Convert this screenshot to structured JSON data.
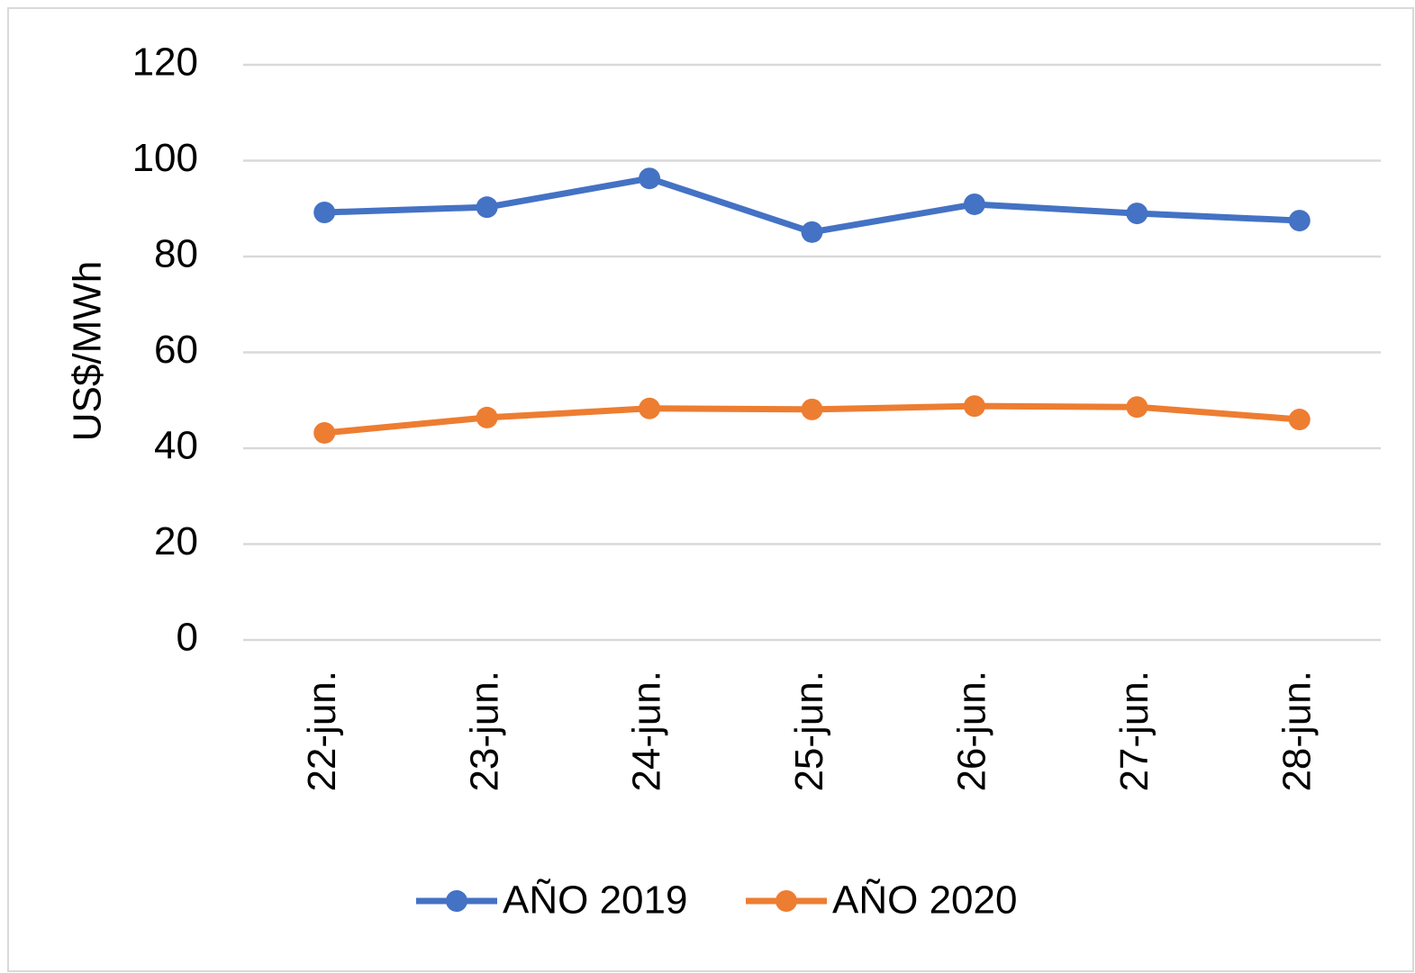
{
  "chart_data": {
    "type": "line",
    "y_label": "US$/MWh",
    "categories": [
      "22-jun.",
      "23-jun.",
      "24-jun.",
      "25-jun.",
      "26-jun.",
      "27-jun.",
      "28-jun."
    ],
    "series": [
      {
        "name": "AÑO 2019",
        "color": "#4472c4",
        "values": [
          89.2,
          90.3,
          96.3,
          85.1,
          90.9,
          89.0,
          87.5
        ]
      },
      {
        "name": "AÑO 2020",
        "color": "#ed7d31",
        "values": [
          43.2,
          46.4,
          48.3,
          48.1,
          48.8,
          48.6,
          46.0
        ]
      }
    ],
    "ylim": [
      0,
      120
    ],
    "yticks": [
      0,
      20,
      40,
      60,
      80,
      100,
      120
    ],
    "grid": true,
    "legend": "bottom"
  }
}
